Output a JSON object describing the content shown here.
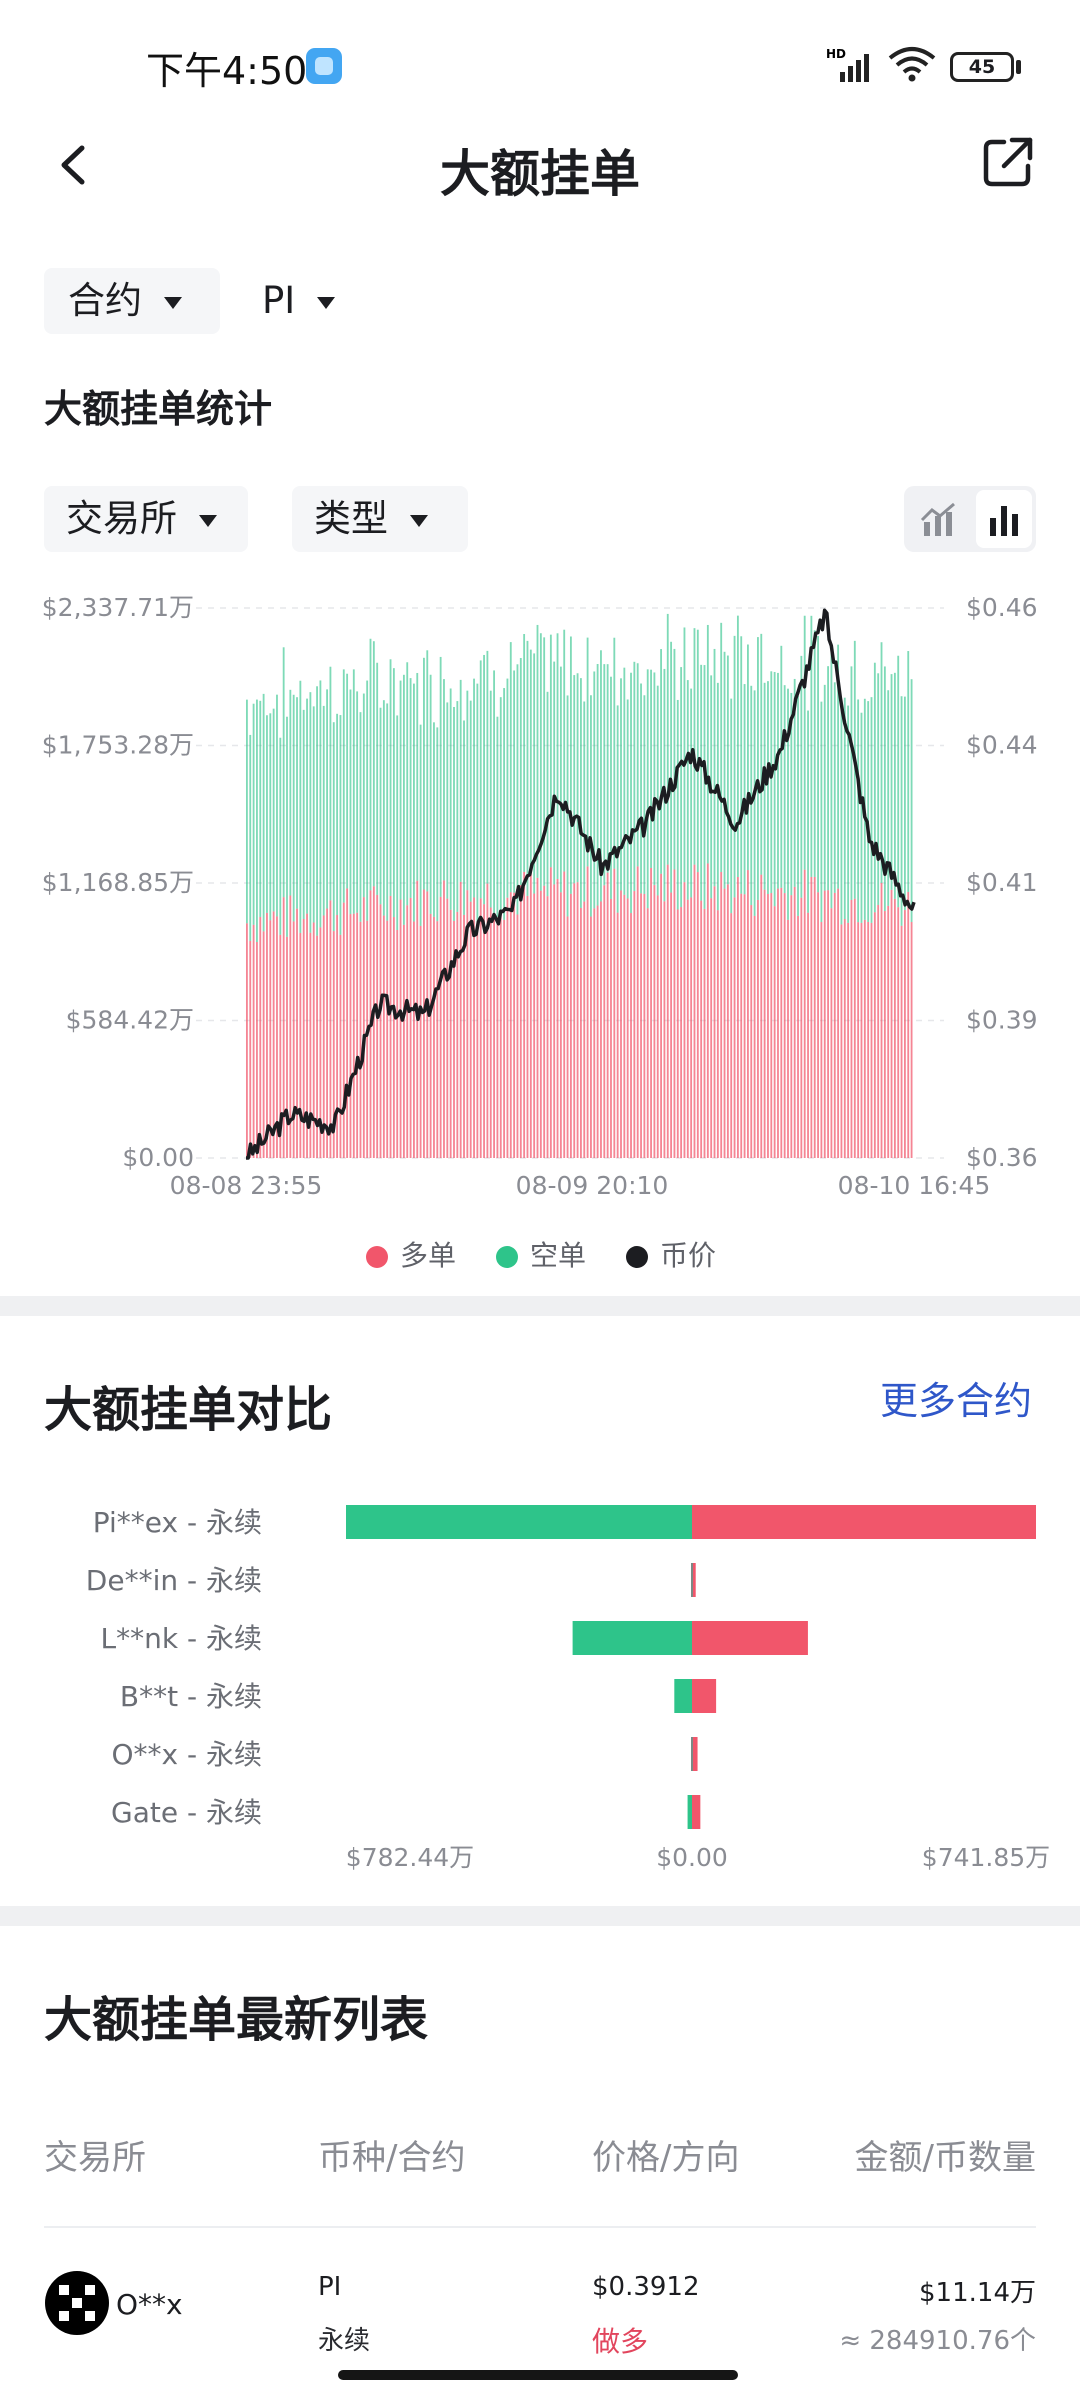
{
  "status_bar": {
    "time": "下午4:50",
    "signal": "HD",
    "battery": "45"
  },
  "header": {
    "title": "大额挂单",
    "back_icon": "chevron-left-icon",
    "share_icon": "external-share-icon"
  },
  "filters": {
    "market_type": "合约",
    "coin": "PI"
  },
  "stats": {
    "heading": "大额挂单统计",
    "exchange_filter": "交易所",
    "type_filter": "类型",
    "view_toggle": [
      "line-chart-icon",
      "bar-chart-icon"
    ],
    "selected_view": "bar-chart-icon"
  },
  "chart_data": {
    "type": "bar",
    "stacked": true,
    "x_ticks": [
      "08-08 23:55",
      "08-09 20:10",
      "08-10 16:45"
    ],
    "y_left_ticks": [
      "$0.00",
      "$584.42万",
      "$1,168.85万",
      "$1,753.28万",
      "$2,337.71万"
    ],
    "y_right_ticks": [
      "$0.36",
      "$0.39",
      "$0.41",
      "$0.44",
      "$0.46"
    ],
    "ylim_left": [
      0,
      2337.71
    ],
    "ylim_right": [
      0.36,
      0.46
    ],
    "series": [
      {
        "name": "多单",
        "color": "#f1566b",
        "approx_values": [
          1020,
          1050,
          1080,
          1120,
          1140,
          1150,
          1160,
          1180,
          1160,
          1150,
          1120,
          1090
        ]
      },
      {
        "name": "空单",
        "color": "#2ec48a",
        "approx_values": [
          960,
          980,
          980,
          960,
          980,
          1000,
          990,
          980,
          1030,
          1010,
          1010,
          1000
        ]
      },
      {
        "name": "币价",
        "color": "#1c1d21",
        "approx_prices": [
          0.36,
          0.368,
          0.366,
          0.388,
          0.386,
          0.401,
          0.405,
          0.427,
          0.413,
          0.421,
          0.434,
          0.421,
          0.434,
          0.459,
          0.418,
          0.405
        ]
      }
    ],
    "legend": [
      "多单",
      "空单",
      "币价"
    ],
    "legend_position": "bottom",
    "grid": true
  },
  "compare": {
    "heading": "大额挂单对比",
    "more_link": "更多合约",
    "rows": [
      {
        "label": "Pi**ex - 永续",
        "short": 782.44,
        "long": 741.85
      },
      {
        "label": "De**in - 永续",
        "short": 0,
        "long": 8
      },
      {
        "label": "L**nk - 永续",
        "short": 270,
        "long": 250
      },
      {
        "label": "B**t - 永续",
        "short": 40,
        "long": 52
      },
      {
        "label": "O**x - 永续",
        "short": 0,
        "long": 12
      },
      {
        "label": "Gate - 永续",
        "short": 10,
        "long": 18
      }
    ],
    "axis": [
      "$782.44万",
      "$0.00",
      "$741.85万"
    ],
    "long_color": "#f1566b",
    "short_color": "#2ec48a"
  },
  "list": {
    "heading": "大额挂单最新列表",
    "columns": [
      "交易所",
      "币种/合约",
      "价格/方向",
      "金额/币数量"
    ],
    "rows": [
      {
        "exchange": "O**x",
        "coin": "PI",
        "contract": "永续",
        "price": "$0.3912",
        "direction": "做多",
        "amount": "$11.14万",
        "quantity": "≈ 284910.76个"
      }
    ]
  }
}
